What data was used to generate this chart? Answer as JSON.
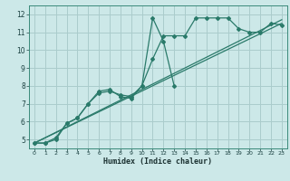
{
  "bg_color": "#cce8e8",
  "grid_color": "#aacccc",
  "line_color": "#2a7a6a",
  "xlabel": "Humidex (Indice chaleur)",
  "xlim": [
    -0.5,
    23.5
  ],
  "ylim": [
    4.5,
    12.5
  ],
  "yticks": [
    5,
    6,
    7,
    8,
    9,
    10,
    11,
    12
  ],
  "xticks": [
    0,
    1,
    2,
    3,
    4,
    5,
    6,
    7,
    8,
    9,
    10,
    11,
    12,
    13,
    14,
    15,
    16,
    17,
    18,
    19,
    20,
    21,
    22,
    23
  ],
  "series": [
    {
      "x": [
        0,
        1,
        2,
        3,
        4,
        5,
        6,
        7,
        8,
        9,
        10,
        11,
        12,
        13
      ],
      "y": [
        4.8,
        4.8,
        5.0,
        5.9,
        6.2,
        7.0,
        7.7,
        7.8,
        7.4,
        7.3,
        8.0,
        11.8,
        10.5,
        8.0
      ],
      "marker": "D",
      "ms": 2.0,
      "lw": 0.9
    },
    {
      "x": [
        0,
        1,
        2,
        3,
        4,
        5,
        6,
        7,
        8,
        9,
        10,
        11,
        12,
        13,
        14,
        15,
        16,
        17,
        18,
        19,
        20,
        21,
        22,
        23
      ],
      "y": [
        4.8,
        4.8,
        5.1,
        5.9,
        6.2,
        7.0,
        7.6,
        7.7,
        7.5,
        7.4,
        8.0,
        9.5,
        10.8,
        10.8,
        10.8,
        11.8,
        11.8,
        11.8,
        11.8,
        11.2,
        11.0,
        11.0,
        11.5,
        11.4
      ],
      "marker": "D",
      "ms": 2.0,
      "lw": 0.9
    },
    {
      "x": [
        0,
        23
      ],
      "y": [
        4.8,
        11.5
      ],
      "marker": null,
      "ms": 0,
      "lw": 0.9
    },
    {
      "x": [
        0,
        23
      ],
      "y": [
        4.8,
        11.7
      ],
      "marker": null,
      "ms": 0,
      "lw": 0.9
    }
  ]
}
